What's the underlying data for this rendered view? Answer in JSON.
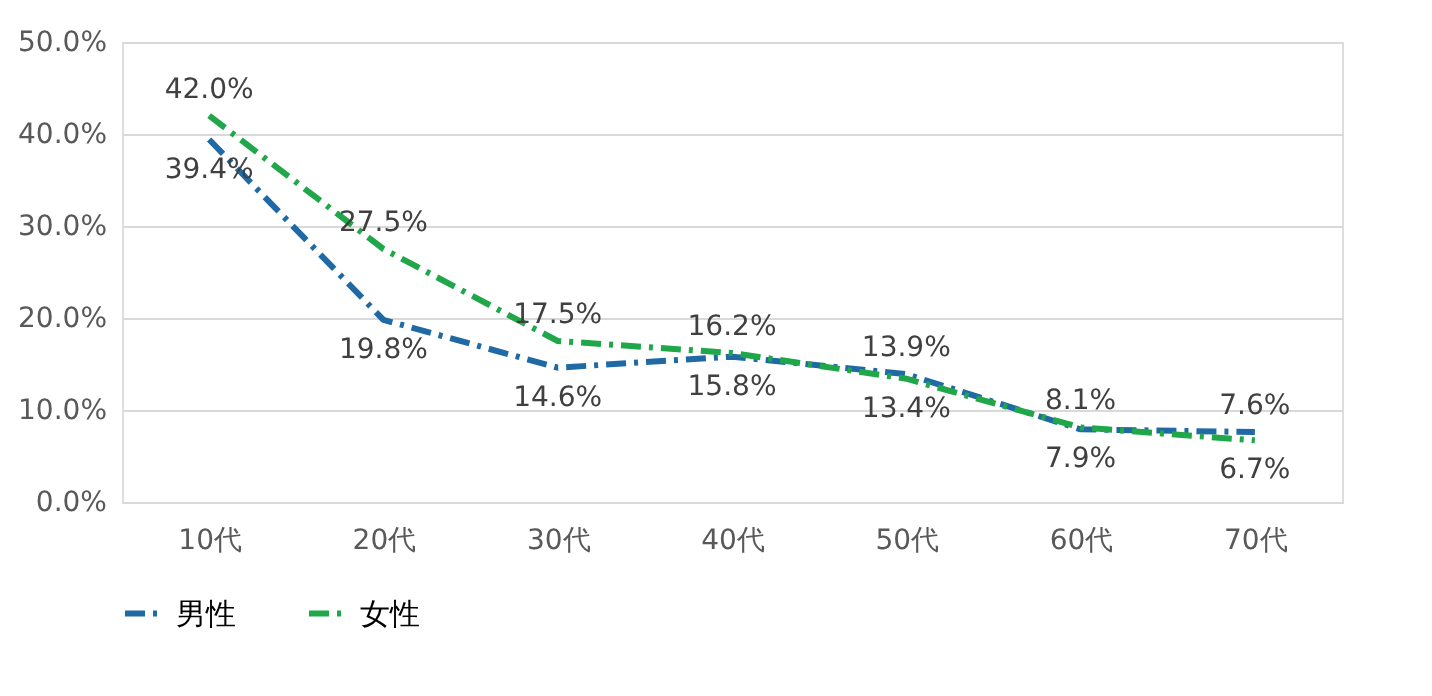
{
  "chart_data": {
    "type": "line",
    "categories": [
      "10代",
      "20代",
      "30代",
      "40代",
      "50代",
      "60代",
      "70代"
    ],
    "series": [
      {
        "name": "男性",
        "color": "#1f6aa5",
        "values": [
          39.4,
          19.8,
          14.6,
          15.8,
          13.9,
          7.9,
          7.6
        ],
        "value_labels": [
          "39.4%",
          "19.8%",
          "14.6%",
          "15.8%",
          "13.9%",
          "7.9%",
          "7.6%"
        ]
      },
      {
        "name": "女性",
        "color": "#1fa74a",
        "values": [
          42.0,
          27.5,
          17.5,
          16.2,
          13.4,
          8.1,
          6.7
        ],
        "value_labels": [
          "42.0%",
          "27.5%",
          "17.5%",
          "16.2%",
          "13.4%",
          "8.1%",
          "6.7%"
        ]
      }
    ],
    "ylim": [
      0,
      50
    ],
    "yticks": [
      {
        "value": 0,
        "label": "0.0%"
      },
      {
        "value": 10,
        "label": "10.0%"
      },
      {
        "value": 20,
        "label": "20.0%"
      },
      {
        "value": 30,
        "label": "30.0%"
      },
      {
        "value": 40,
        "label": "40.0%"
      },
      {
        "value": 50,
        "label": "50.0%"
      }
    ],
    "grid": "y",
    "legend": "bottom",
    "line_style": "dashdot",
    "marker": "none"
  }
}
